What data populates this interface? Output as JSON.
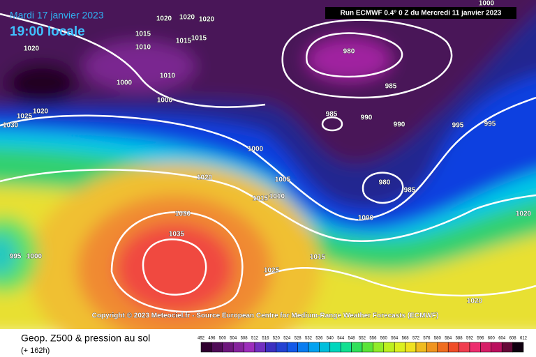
{
  "header": {
    "date": "Mardi 17 janvier 2023",
    "time": "19:00 locale",
    "run": "Run ECMWF 0.4° 0 Z du Mercredi 11 janvier 2023"
  },
  "copyright": "Copyright © 2023 Meteociel.fr - Source European Centre for Medium-Range Weather Forecasts (ECMWF)",
  "footer": {
    "title": "Geop. Z500 & pression au sol",
    "lead": "(+ 162h)"
  },
  "colorbar": {
    "labels": [
      492,
      496,
      500,
      504,
      508,
      512,
      516,
      520,
      524,
      528,
      532,
      536,
      540,
      544,
      548,
      552,
      556,
      560,
      564,
      568,
      572,
      576,
      580,
      584,
      588,
      592,
      596,
      600,
      604,
      608,
      612
    ]
  },
  "isobars": [
    1020,
    1020,
    1020,
    1015,
    1015,
    1015,
    1010,
    1020,
    980,
    1010,
    1000,
    985,
    1000,
    1025,
    1020,
    1030,
    985,
    990,
    990,
    995,
    995,
    1000,
    1020,
    1005,
    980,
    985,
    1015,
    1010,
    1030,
    1000,
    1020,
    1035,
    995,
    1000,
    1015,
    1025,
    1020,
    1000
  ]
}
